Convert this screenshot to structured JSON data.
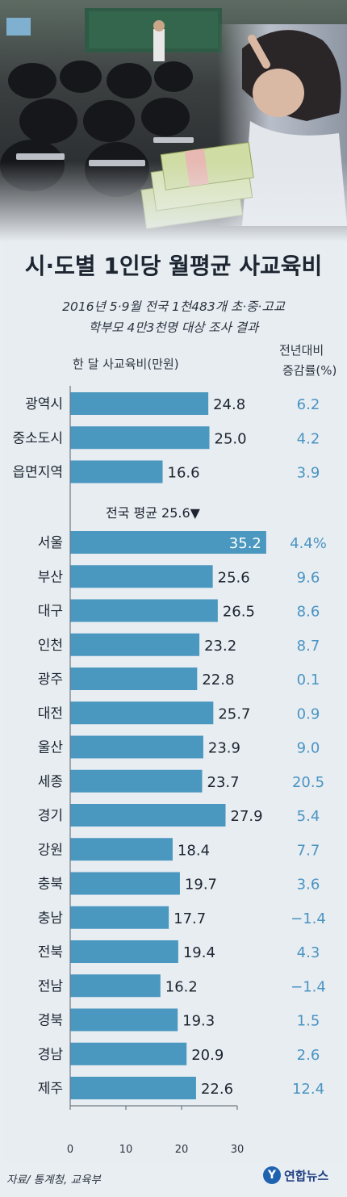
{
  "title": "시·도별 1인당 월평균 사교육비",
  "subtitle_lines": [
    "2016년 5·9월 전국 1천483개 초·중·고교",
    "학부모 4만3천명 대상 조사 결과"
  ],
  "headers": {
    "value": "한 달 사교육비(만원)",
    "change_line1": "전년대비",
    "change_line2": "증감률(%)"
  },
  "national_average": {
    "label": "전국 평균 25.6▼",
    "value": 25.6
  },
  "source": "자료/ 통계청, 교육부",
  "logo": {
    "mark": "Y",
    "text": "연합뉴스"
  },
  "colors": {
    "bar": "#4a97bf",
    "change_text": "#4a94c2",
    "label_text": "#1c2530",
    "background": "#e8edf2"
  },
  "chart_data": {
    "type": "bar",
    "orientation": "horizontal",
    "xlim": [
      0,
      30
    ],
    "xticks": [
      "0",
      "10",
      "20",
      "30"
    ],
    "groups": [
      {
        "rows": [
          {
            "label": "광역시",
            "value": 24.8,
            "value_text": "24.8",
            "change": "6.2"
          },
          {
            "label": "중소도시",
            "value": 25.0,
            "value_text": "25.0",
            "change": "4.2"
          },
          {
            "label": "읍면지역",
            "value": 16.6,
            "value_text": "16.6",
            "change": "3.9"
          }
        ]
      },
      {
        "rows": [
          {
            "label": "서울",
            "value": 35.2,
            "value_text": "35.2",
            "change": "4.4%"
          },
          {
            "label": "부산",
            "value": 25.6,
            "value_text": "25.6",
            "change": "9.6"
          },
          {
            "label": "대구",
            "value": 26.5,
            "value_text": "26.5",
            "change": "8.6"
          },
          {
            "label": "인천",
            "value": 23.2,
            "value_text": "23.2",
            "change": "8.7"
          },
          {
            "label": "광주",
            "value": 22.8,
            "value_text": "22.8",
            "change": "0.1"
          },
          {
            "label": "대전",
            "value": 25.7,
            "value_text": "25.7",
            "change": "0.9"
          },
          {
            "label": "울산",
            "value": 23.9,
            "value_text": "23.9",
            "change": "9.0"
          },
          {
            "label": "세종",
            "value": 23.7,
            "value_text": "23.7",
            "change": "20.5"
          },
          {
            "label": "경기",
            "value": 27.9,
            "value_text": "27.9",
            "change": "5.4"
          },
          {
            "label": "강원",
            "value": 18.4,
            "value_text": "18.4",
            "change": "7.7"
          },
          {
            "label": "충북",
            "value": 19.7,
            "value_text": "19.7",
            "change": "3.6"
          },
          {
            "label": "충남",
            "value": 17.7,
            "value_text": "17.7",
            "change": "−1.4"
          },
          {
            "label": "전북",
            "value": 19.4,
            "value_text": "19.4",
            "change": "4.3"
          },
          {
            "label": "전남",
            "value": 16.2,
            "value_text": "16.2",
            "change": "−1.4"
          },
          {
            "label": "경북",
            "value": 19.3,
            "value_text": "19.3",
            "change": "1.5"
          },
          {
            "label": "경남",
            "value": 20.9,
            "value_text": "20.9",
            "change": "2.6"
          },
          {
            "label": "제주",
            "value": 22.6,
            "value_text": "22.6",
            "change": "12.4"
          }
        ]
      }
    ]
  }
}
